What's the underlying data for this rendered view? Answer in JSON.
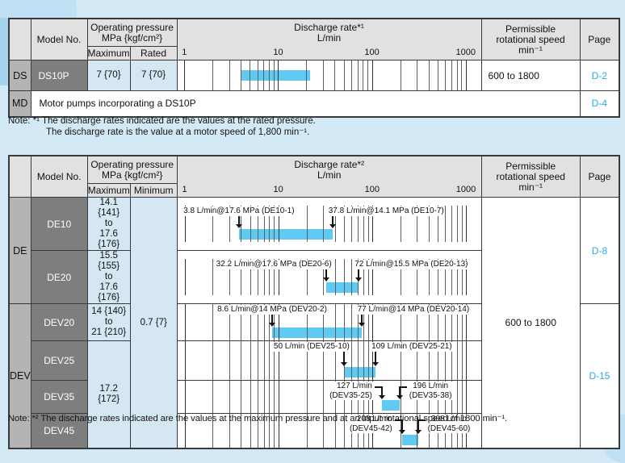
{
  "axis": {
    "vmin": 0.84,
    "vmax": 1450,
    "ticks": [
      1,
      10,
      100,
      1000
    ],
    "tick_labels": [
      "1",
      "10",
      "100",
      "1000"
    ]
  },
  "colors": {
    "background": "#d3e9f6",
    "bar": "#60cbf2",
    "page_link": "#29abe2",
    "header_bg": "#e1e1e1",
    "group_bg": "#b4b4b4",
    "model_bg": "#7e7e7e",
    "pressure_cell_bg": "#d5e7f2"
  },
  "table1": {
    "header": {
      "model": "Model No.",
      "pressure_title": "Operating pressure\nMPa {kgf/cm²}",
      "pressure_col1": "Maximum",
      "pressure_col2": "Rated",
      "discharge_title": "Discharge rate*¹\nL/min",
      "speed": "Permissible\nrotational speed\nmin⁻¹",
      "page": "Page"
    },
    "row_ds": {
      "group": "DS",
      "model": "DS10P",
      "maximum": "7 {70}",
      "rated": "7 {70}",
      "speed": "600 to 1800",
      "page": "D-2",
      "chart": {
        "bar": [
          4,
          22
        ],
        "annotations": []
      }
    },
    "row_md": {
      "group": "MD",
      "description": "Motor pumps incorporating a DS10P",
      "page": "D-4"
    }
  },
  "note1": {
    "line1": "Note: *¹ The discharge rates indicated are the values at the rated pressure.",
    "line2": "The discharge rate is the value at a motor speed of 1,800 min⁻¹."
  },
  "table2": {
    "header": {
      "model": "Model No.",
      "pressure_title": "Operating pressure\nMPa {kgf/cm²}",
      "pressure_col1": "Maximum",
      "pressure_col2": "Minimum",
      "discharge_title": "Discharge rate*²\nL/min",
      "speed": "Permissible\nrotational speed\nmin⁻¹",
      "page": "Page"
    },
    "minimum": "0.7 {7}",
    "speed": "600 to 1800",
    "groups": [
      {
        "label": "DE",
        "page": "D-8"
      },
      {
        "label": "DEV",
        "page": "D-15"
      }
    ],
    "rows": [
      {
        "model": "DE10",
        "maximum": "14.1 {141}\nto\n17.6 {176}",
        "chart": {
          "bar": [
            3.8,
            37.8
          ],
          "annotations": [
            {
              "text": "3.8 L/min@17.6 MPa (DE10-1)",
              "value": 3.8,
              "align": "center"
            },
            {
              "text": "37.8 L/min@14.1 MPa (DE10-7)",
              "value": 37.8,
              "align": "left"
            }
          ]
        }
      },
      {
        "model": "DE20",
        "maximum": "15.5 {155}\nto\n17.6 {176}",
        "chart": {
          "bar": [
            32.2,
            72
          ],
          "annotations": [
            {
              "text": "32.2 L/min@17.6 MPa (DE20-6)",
              "value": 32.2,
              "align": "right"
            },
            {
              "text": "72 L/min@15.5 MPa (DE20-13)",
              "value": 72,
              "align": "left"
            }
          ]
        }
      },
      {
        "model": "DEV20",
        "maximum": "14 {140}\nto\n21 {210}",
        "chart": {
          "bar": [
            8.6,
            77
          ],
          "annotations": [
            {
              "text": "8.6 L/min@14 MPa (DEV20-2)",
              "value": 8.6,
              "align": "center"
            },
            {
              "text": "77 L/min@14 MPa (DEV20-14)",
              "value": 77,
              "align": "left"
            }
          ]
        }
      },
      {
        "model": "DEV25",
        "maximum": "17.2 {172}",
        "chart": {
          "bar": [
            50,
            109
          ],
          "annotations": [
            {
              "text": "50 L/min (DEV25-10)",
              "value": 50,
              "align": "right"
            },
            {
              "text": "109 L/min (DEV25-21)",
              "value": 109,
              "align": "left"
            }
          ]
        }
      },
      {
        "model": "DEV35",
        "chart": {
          "bar": [
            127,
            196
          ],
          "annotations": [
            {
              "text": "127 L/min\n(DEV35-25)",
              "value": 127,
              "align": "elbow-left"
            },
            {
              "text": "196 L/min\n(DEV35-38)",
              "value": 196,
              "align": "elbow-right"
            }
          ]
        }
      },
      {
        "model": "DEV45",
        "chart": {
          "bar": [
            208,
            308
          ],
          "annotations": [
            {
              "text": "208 L/min\n(DEV45-42)",
              "value": 208,
              "align": "elbow-left"
            },
            {
              "text": "308 L/min\n(DEV45-60)",
              "value": 308,
              "align": "elbow-right"
            }
          ]
        }
      }
    ]
  },
  "note2": {
    "line1": "Note: *² The discharge rates indicated are the values at the maximum pressure and at an input rotational speed of 1800 min⁻¹."
  }
}
